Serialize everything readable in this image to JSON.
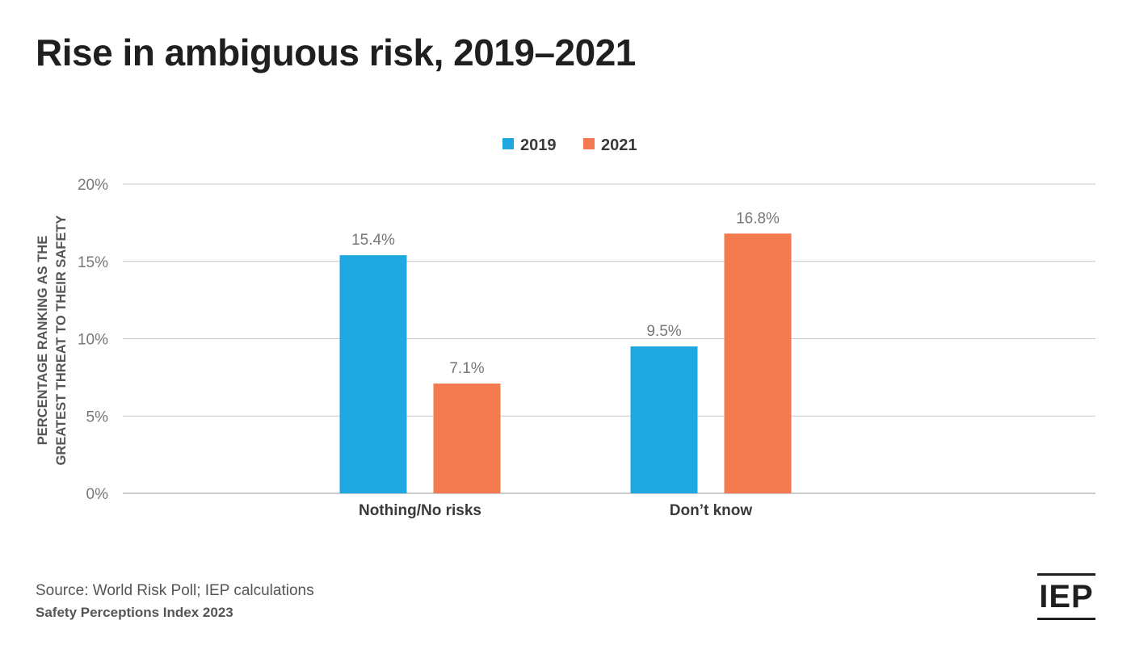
{
  "title": "Rise in ambiguous risk, 2019–2021",
  "source": "Source: World Risk Poll; IEP calculations",
  "publication": "Safety Perceptions Index 2023",
  "logo_text": "IEP",
  "colors": {
    "series_2019": "#1fa8e0",
    "series_2021": "#f47b4f",
    "grid": "#c8c8c8",
    "tick_text": "#777777",
    "label_text": "#555555"
  },
  "chart_data": {
    "type": "bar",
    "categories": [
      "Nothing/No risks",
      "Don’t know"
    ],
    "series": [
      {
        "name": "2019",
        "values": [
          15.4,
          9.5
        ],
        "labels": [
          "15.4%",
          "9.5%"
        ]
      },
      {
        "name": "2021",
        "values": [
          7.1,
          16.8
        ],
        "labels": [
          "7.1%",
          "16.8%"
        ]
      }
    ],
    "ylabel_lines": [
      "PERCENTAGE RANKING AS THE",
      "GREATEST THREAT TO THEIR SAFETY"
    ],
    "ylim": [
      0,
      20
    ],
    "yticks": [
      0,
      5,
      10,
      15,
      20
    ],
    "ytick_labels": [
      "0%",
      "5%",
      "10%",
      "15%",
      "20%"
    ],
    "grid": true,
    "legend_position": "top-center"
  }
}
